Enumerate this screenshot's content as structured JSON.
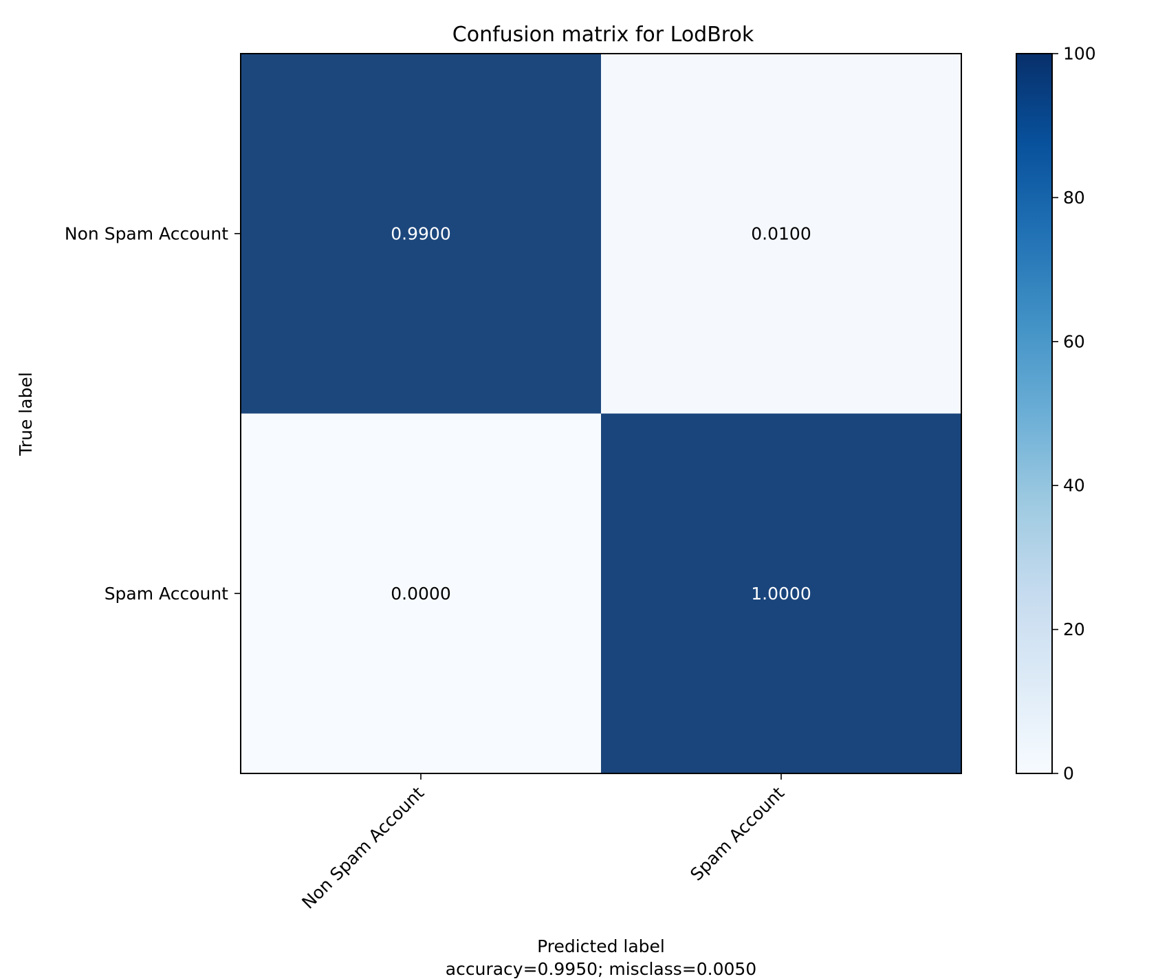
{
  "chart_data": {
    "type": "heatmap",
    "title": "Confusion matrix for LodBrok",
    "xlabel": "Predicted label",
    "ylabel": "True label",
    "footer": "accuracy=0.9950; misclass=0.0050",
    "x_categories": [
      "Non Spam Account",
      "Spam Account"
    ],
    "y_categories": [
      "Non Spam Account",
      "Spam Account"
    ],
    "values": [
      [
        0.99,
        0.01
      ],
      [
        0.0,
        1.0
      ]
    ],
    "cell_labels": [
      [
        "0.9900",
        "0.0100"
      ],
      [
        "0.0000",
        "1.0000"
      ]
    ],
    "colorbar": {
      "range": [
        0,
        100
      ],
      "ticks": [
        0,
        20,
        40,
        60,
        80,
        100
      ],
      "tick_labels": [
        "0",
        "20",
        "40",
        "60",
        "80",
        "100"
      ],
      "colormap": "Blues"
    },
    "colors": {
      "high": "#1a457c",
      "low": "#f7fbff"
    }
  }
}
